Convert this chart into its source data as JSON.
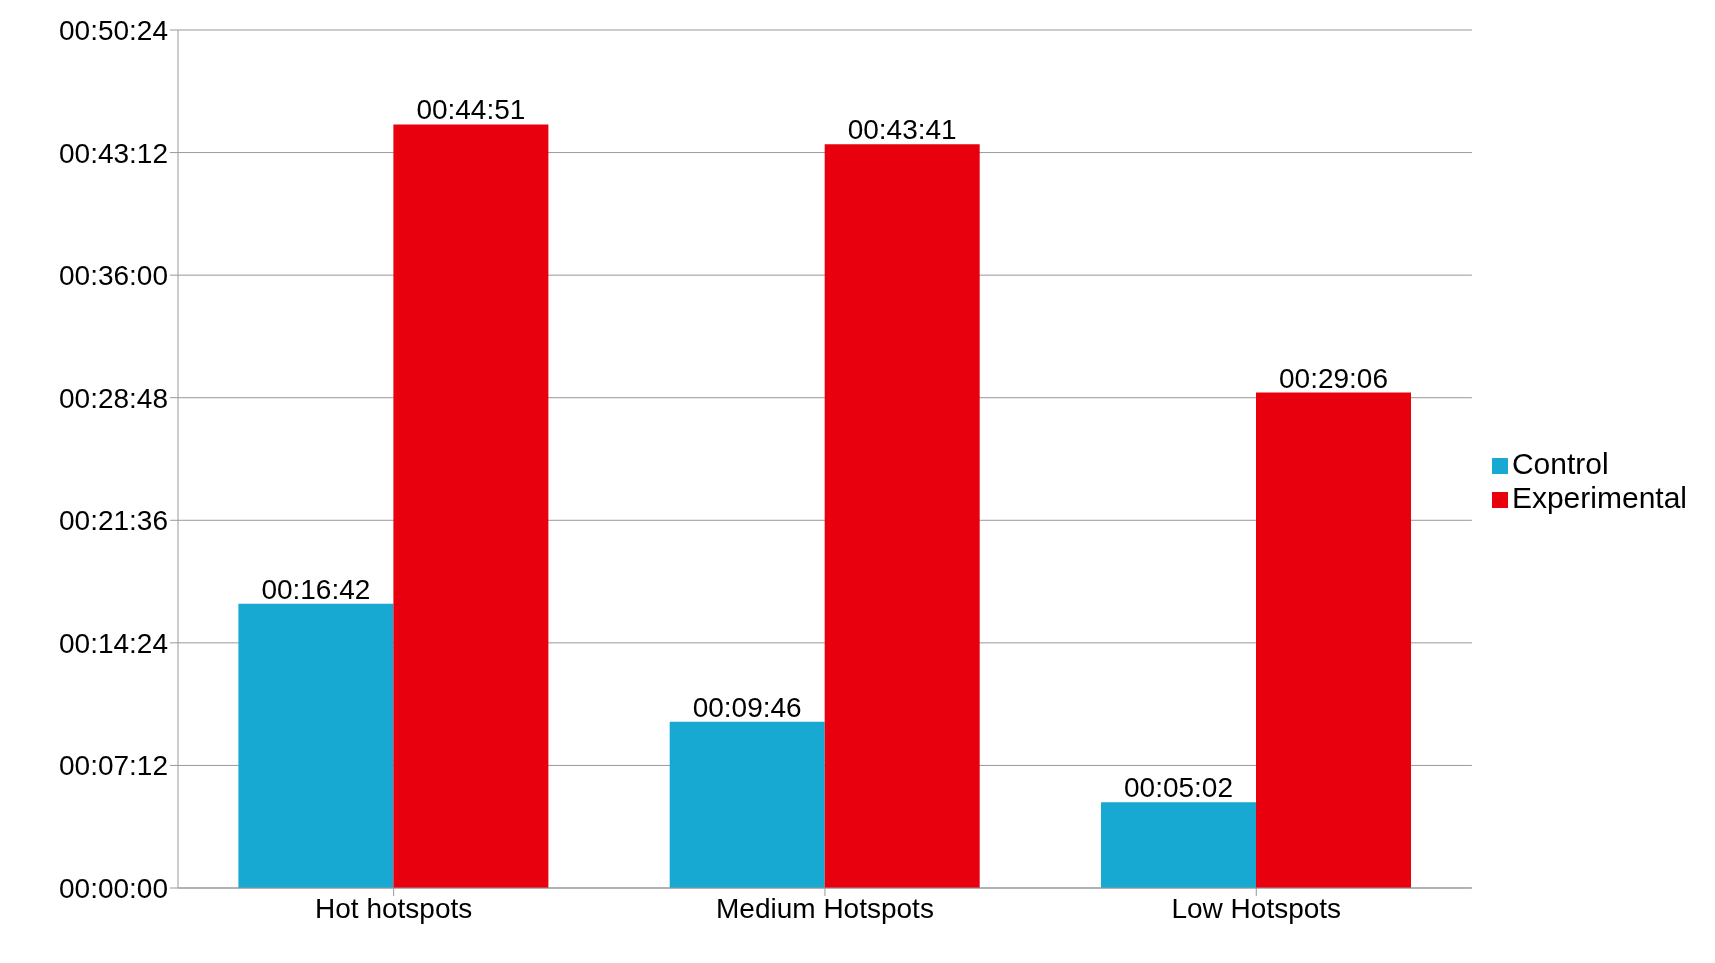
{
  "chart_data": {
    "type": "bar",
    "categories": [
      "Hot hotspots",
      "Medium Hotspots",
      "Low Hotspots"
    ],
    "series": [
      {
        "name": "Control",
        "color": "#17a9d1",
        "values": [
          16.7,
          9.7667,
          5.0333
        ],
        "value_labels": [
          "00:16:42",
          "00:09:46",
          "00:05:02"
        ]
      },
      {
        "name": "Experimental",
        "color": "#e8000f",
        "values": [
          44.85,
          43.6833,
          29.1
        ],
        "value_labels": [
          "00:44:51",
          "00:43:41",
          "00:29:06"
        ]
      }
    ],
    "ylim": [
      0,
      50.4
    ],
    "yticks": [
      {
        "value": 0,
        "label": "00:00:00"
      },
      {
        "value": 7.2,
        "label": "00:07:12"
      },
      {
        "value": 14.4,
        "label": "00:14:24"
      },
      {
        "value": 21.6,
        "label": "00:21:36"
      },
      {
        "value": 28.8,
        "label": "00:28:48"
      },
      {
        "value": 36,
        "label": "00:36:00"
      },
      {
        "value": 43.2,
        "label": "00:43:12"
      },
      {
        "value": 50.4,
        "label": "00:50:24"
      }
    ],
    "grid": "y",
    "legend": "right"
  }
}
